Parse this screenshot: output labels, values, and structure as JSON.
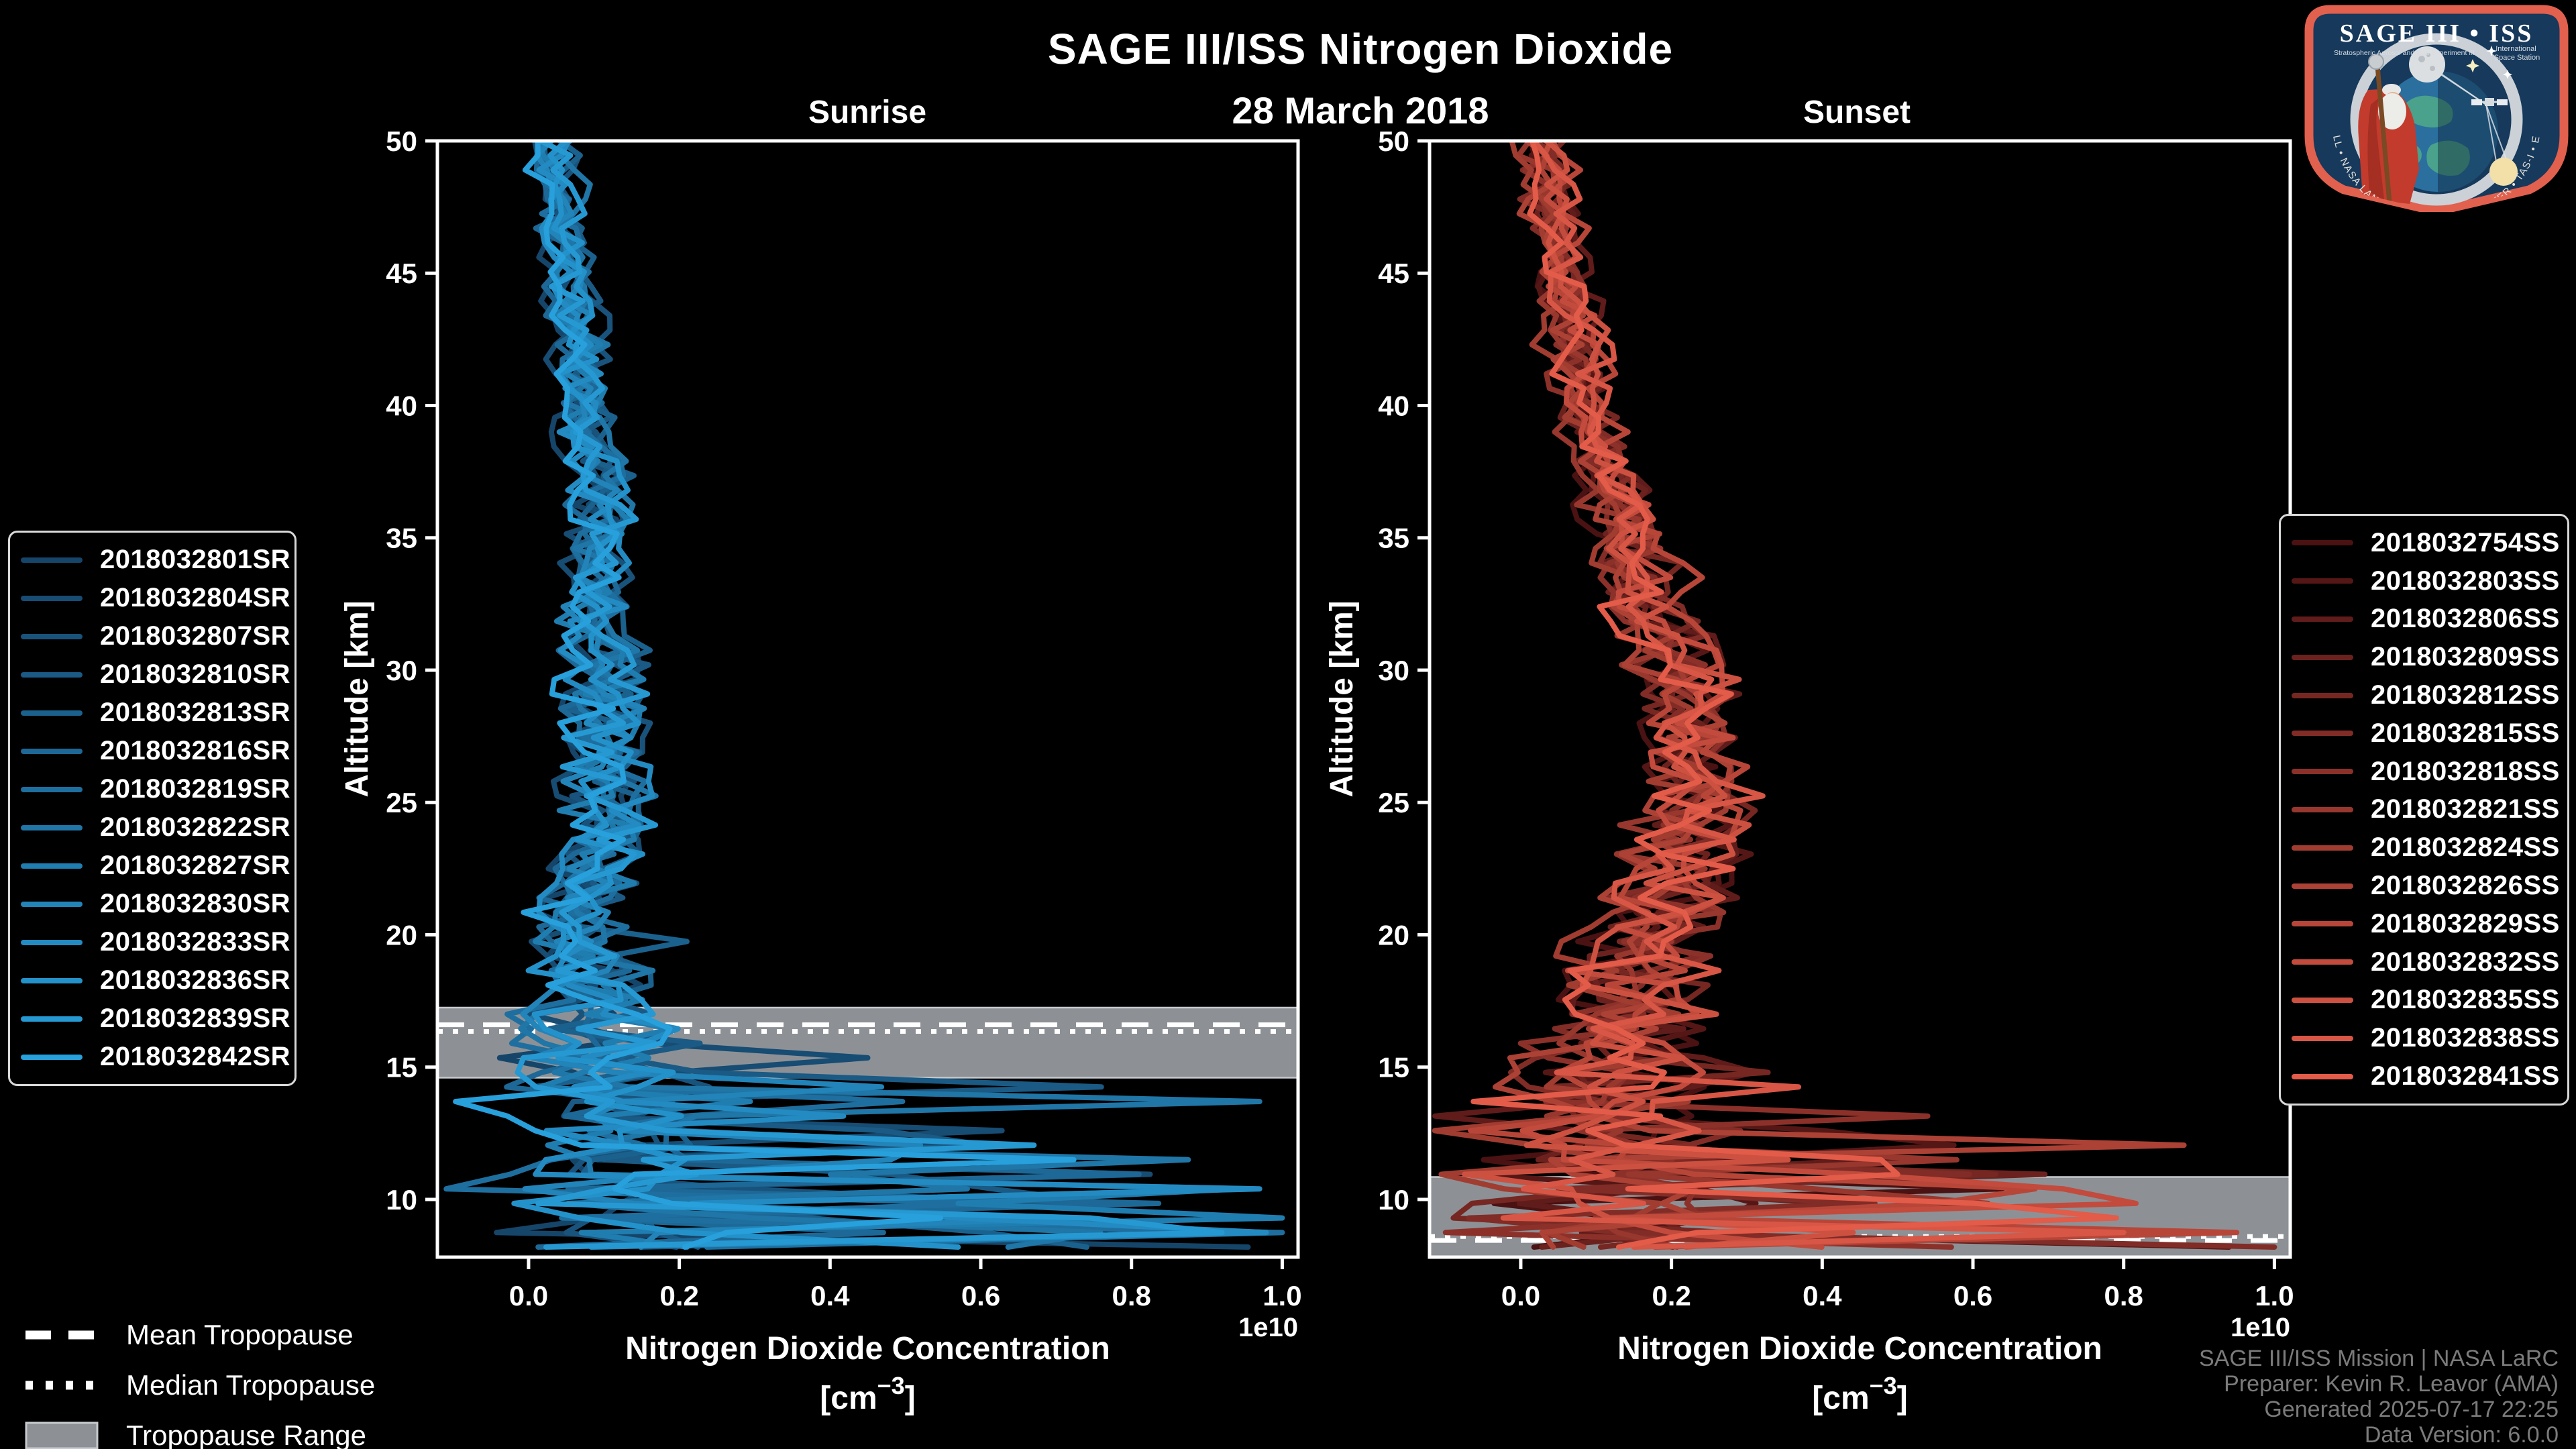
{
  "header": {
    "title": "SAGE III/ISS Nitrogen Dioxide",
    "date": "28 March 2018"
  },
  "tropopause_legend": {
    "mean": "Mean Tropopause",
    "median": "Median Tropopause",
    "range": "Tropopause Range"
  },
  "attribution": {
    "line1": "SAGE III/ISS Mission | NASA LaRC",
    "line2": "Preparer: Kevin R. Leavor (AMA)",
    "line3": "Generated 2025-07-17 22:25",
    "line4": "Data Version: 6.0.0"
  },
  "logo": {
    "title": "SAGE III • ISS",
    "subtitle_left": "Stratospheric Aerosol and Gas Experiment III",
    "subtitle_right1": "International",
    "subtitle_right2": "Space Station",
    "ring_text": "BALL • NASA LANGLEY RESEARCH CENTER • TAS-I • ESA"
  },
  "chart_data": [
    {
      "type": "line",
      "panel": "sunrise",
      "title": "Sunrise",
      "legend_container": "legend-sunrise",
      "xlabel_line1": "Nitrogen Dioxide Concentration",
      "xlabel_unit_pre": "[cm",
      "xlabel_unit_sup": "−3",
      "xlabel_unit_post": "]",
      "ylabel": "Altitude [km]",
      "offset_label": "1e10",
      "xlim": [
        -0.121,
        1.021
      ],
      "ylim": [
        7.82,
        50
      ],
      "xtick_values": [
        0.0,
        0.2,
        0.4,
        0.6,
        0.8,
        1.0
      ],
      "xtick_labels": [
        "0.0",
        "0.2",
        "0.4",
        "0.6",
        "0.8",
        "1.0"
      ],
      "ytick_values": [
        10,
        15,
        20,
        25,
        30,
        35,
        40,
        45,
        50
      ],
      "series_ids": [
        "2018032801SR",
        "2018032804SR",
        "2018032807SR",
        "2018032810SR",
        "2018032813SR",
        "2018032816SR",
        "2018032819SR",
        "2018032822SR",
        "2018032827SR",
        "2018032830SR",
        "2018032833SR",
        "2018032836SR",
        "2018032839SR",
        "2018032842SR"
      ],
      "color_start": "#16456a",
      "color_end": "#27a0dc",
      "line_width": 8,
      "line_bottom_km": 7.95,
      "profile": {
        "alt_km": [
          50,
          47,
          44,
          41,
          38,
          35,
          32,
          30,
          28,
          26,
          24,
          22,
          20,
          19,
          18,
          17,
          16,
          15,
          14,
          13,
          12,
          11,
          10,
          9,
          7.9
        ],
        "conc_1e10": [
          0.03,
          0.045,
          0.055,
          0.07,
          0.085,
          0.09,
          0.095,
          0.095,
          0.1,
          0.105,
          0.1,
          0.085,
          0.062,
          0.07,
          0.08,
          0.085,
          0.085,
          0.09,
          0.1,
          0.1,
          0.1,
          0.11,
          0.12,
          0.12,
          0.12
        ]
      },
      "tropopause": {
        "mean_km": 16.6,
        "median_km": 16.35,
        "range_km": [
          14.6,
          17.25
        ],
        "band_color": "#8d9196",
        "band_edge_color": "#c6cacd",
        "line_color": "#ffffff"
      },
      "noise": {
        "seed": 7,
        "step_km": 0.55,
        "amp_anchors": [
          [
            50,
            0.02
          ],
          [
            42,
            0.025
          ],
          [
            34,
            0.035
          ],
          [
            28,
            0.045
          ],
          [
            24,
            0.05
          ],
          [
            20,
            0.045
          ],
          [
            17.5,
            0.075
          ],
          [
            16,
            0.095
          ],
          [
            14,
            0.085
          ],
          [
            12,
            0.09
          ],
          [
            10,
            0.12
          ],
          [
            7.9,
            0.12
          ]
        ],
        "spike_below_km": 14.8,
        "spike_prob_anchors": [
          [
            14.8,
            0.08
          ],
          [
            12.5,
            0.1
          ],
          [
            10.5,
            0.22
          ],
          [
            7.9,
            0.32
          ]
        ],
        "neg_prob": 0.06,
        "spike_max_anchors": [
          [
            14.8,
            0.6
          ],
          [
            12.5,
            0.85
          ],
          [
            10,
            1.0
          ],
          [
            7.9,
            1.0
          ]
        ],
        "forced_spikes": [
          [
            19.6,
            0.21,
            4
          ],
          [
            15.3,
            0.45,
            1
          ],
          [
            14.0,
            0.76,
            3
          ],
          [
            13.5,
            0.97,
            7
          ],
          [
            12.3,
            0.52,
            9
          ],
          [
            11.0,
            0.81,
            5
          ],
          [
            10.4,
            0.97,
            10
          ],
          [
            9.9,
            0.7,
            2
          ],
          [
            9.3,
            1.0,
            8
          ],
          [
            8.9,
            0.92,
            12
          ],
          [
            8.5,
            1.0,
            6
          ],
          [
            8.1,
            0.57,
            11
          ]
        ]
      }
    },
    {
      "type": "line",
      "panel": "sunset",
      "title": "Sunset",
      "legend_container": "legend-sunset",
      "xlabel_line1": "Nitrogen Dioxide Concentration",
      "xlabel_unit_pre": "[cm",
      "xlabel_unit_sup": "−3",
      "xlabel_unit_post": "]",
      "ylabel": "Altitude [km]",
      "offset_label": "1e10",
      "xlim": [
        -0.121,
        1.021
      ],
      "ylim": [
        7.82,
        50
      ],
      "xtick_values": [
        0.0,
        0.2,
        0.4,
        0.6,
        0.8,
        1.0
      ],
      "xtick_labels": [
        "0.0",
        "0.2",
        "0.4",
        "0.6",
        "0.8",
        "1.0"
      ],
      "ytick_values": [
        10,
        15,
        20,
        25,
        30,
        35,
        40,
        45,
        50
      ],
      "series_ids": [
        "2018032754SS",
        "2018032803SS",
        "2018032806SS",
        "2018032809SS",
        "2018032812SS",
        "2018032815SS",
        "2018032818SS",
        "2018032821SS",
        "2018032824SS",
        "2018032826SS",
        "2018032829SS",
        "2018032832SS",
        "2018032835SS",
        "2018032838SS",
        "2018032841SS"
      ],
      "color_start": "#4a1212",
      "color_end": "#e35b49",
      "line_width": 8,
      "line_bottom_km": 7.9,
      "profile": {
        "alt_km": [
          50,
          47,
          44,
          41,
          39,
          37,
          35,
          33,
          31,
          29,
          27,
          25,
          23,
          21,
          20,
          19,
          18,
          17,
          16,
          15,
          14,
          13,
          12,
          11,
          10,
          9,
          7.9
        ],
        "conc_1e10": [
          0.03,
          0.045,
          0.06,
          0.08,
          0.1,
          0.12,
          0.14,
          0.17,
          0.2,
          0.22,
          0.235,
          0.235,
          0.21,
          0.19,
          0.18,
          0.16,
          0.145,
          0.13,
          0.13,
          0.12,
          0.12,
          0.12,
          0.12,
          0.12,
          0.12,
          0.12,
          0.12
        ]
      },
      "tropopause": {
        "mean_km": 8.45,
        "median_km": 8.6,
        "range_km": [
          7.82,
          10.85
        ],
        "band_color": "#8d9196",
        "band_edge_color": "#c6cacd",
        "line_color": "#ffffff"
      },
      "noise": {
        "seed": 13,
        "step_km": 0.55,
        "amp_anchors": [
          [
            50,
            0.022
          ],
          [
            40,
            0.03
          ],
          [
            33,
            0.045
          ],
          [
            27,
            0.055
          ],
          [
            22,
            0.065
          ],
          [
            19,
            0.075
          ],
          [
            16,
            0.09
          ],
          [
            14,
            0.1
          ],
          [
            12,
            0.1
          ],
          [
            10,
            0.12
          ],
          [
            7.9,
            0.13
          ]
        ],
        "spike_below_km": 15.2,
        "spike_prob_anchors": [
          [
            15.2,
            0.06
          ],
          [
            13,
            0.1
          ],
          [
            11,
            0.18
          ],
          [
            9.5,
            0.26
          ],
          [
            7.9,
            0.3
          ]
        ],
        "neg_prob": 0.05,
        "spike_max_anchors": [
          [
            15.2,
            0.35
          ],
          [
            13,
            0.6
          ],
          [
            12,
            0.9
          ],
          [
            10.5,
            0.75
          ],
          [
            9,
            1.0
          ],
          [
            7.9,
            1.0
          ]
        ],
        "forced_spikes": [
          [
            14.7,
            0.31,
            2
          ],
          [
            13.0,
            0.54,
            6
          ],
          [
            12.6,
            0.4,
            1
          ],
          [
            12.0,
            0.88,
            9
          ],
          [
            11.2,
            0.63,
            4
          ],
          [
            10.8,
            0.5,
            14
          ],
          [
            10.3,
            0.72,
            11
          ],
          [
            9.6,
            0.62,
            7
          ],
          [
            9.0,
            0.8,
            13
          ],
          [
            8.6,
            0.95,
            10
          ],
          [
            8.2,
            1.0,
            5
          ]
        ]
      }
    }
  ]
}
